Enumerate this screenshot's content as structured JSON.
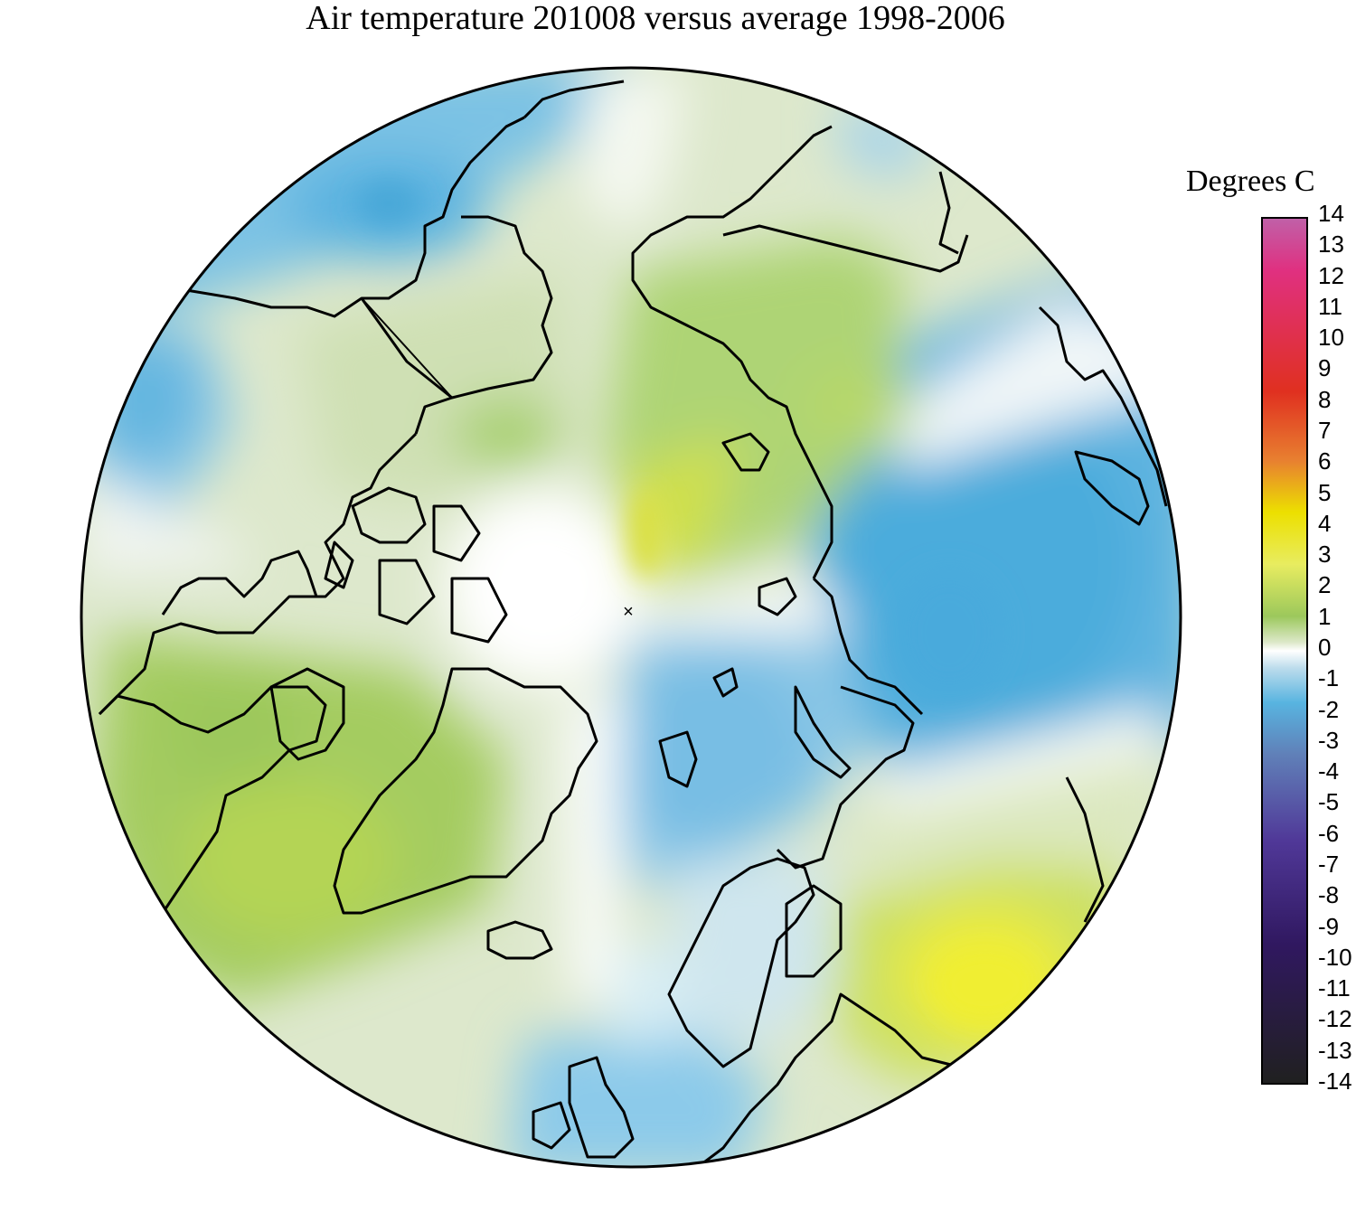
{
  "title": "Air temperature 201008 versus average 1998-2006",
  "legend": {
    "title": "Degrees C",
    "ticks": [
      "14",
      "13",
      "12",
      "11",
      "10",
      "9",
      "8",
      "7",
      "6",
      "5",
      "4",
      "3",
      "2",
      "1",
      "0",
      "-1",
      "-2",
      "-3",
      "-4",
      "-5",
      "-6",
      "-7",
      "-8",
      "-9",
      "-10",
      "-11",
      "-12",
      "-13",
      "-14"
    ],
    "colors": {
      "top": "#c060a8",
      "magenta": "#e03080",
      "red": "#e03020",
      "orange": "#e88030",
      "yellow": "#ece000",
      "light_yellow": "#e8ec60",
      "green": "#9cc85c",
      "pale_green": "#dce8c8",
      "zero": "#ffffff",
      "light_blue": "#bcdcec",
      "blue": "#58b4e0",
      "steel_blue": "#6080b8",
      "purple": "#503898",
      "dark_purple": "#301860",
      "black": "#202020"
    }
  },
  "map": {
    "projection": "north-polar-stereographic",
    "pole_marker": "×",
    "anomaly_regions": {
      "north_america": "positive",
      "greenland": "positive",
      "siberia_central": "positive",
      "russia_east": "negative",
      "europe_north": "negative",
      "west_russia_south": "strong positive"
    }
  }
}
